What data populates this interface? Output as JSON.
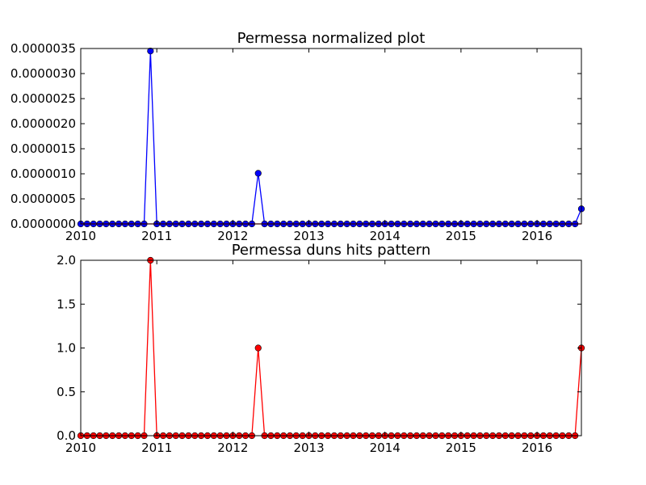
{
  "chart_data": [
    {
      "type": "line",
      "title": "Permessa normalized plot",
      "xlabel": "",
      "ylabel": "",
      "xlim": [
        "2010-01",
        "2016-08"
      ],
      "ylim": [
        0,
        3.5e-06
      ],
      "x_ticks": [
        "2010",
        "2011",
        "2012",
        "2013",
        "2014",
        "2015",
        "2016"
      ],
      "y_ticks": [
        "0.0000000",
        "0.0000005",
        "0.0000010",
        "0.0000015",
        "0.0000020",
        "0.0000025",
        "0.0000030",
        "0.0000035"
      ],
      "grid": false,
      "x_start": "2010-01",
      "x_frequency": "monthly",
      "series": [
        {
          "color": "#0000ff",
          "marker": "circle",
          "values": [
            0,
            0,
            0,
            0,
            0,
            0,
            0,
            0,
            0,
            0,
            0,
            3.45e-06,
            0,
            0,
            0,
            0,
            0,
            0,
            0,
            0,
            0,
            0,
            0,
            0,
            0,
            0,
            0,
            0,
            1.01e-06,
            0,
            0,
            0,
            0,
            0,
            0,
            0,
            0,
            0,
            0,
            0,
            0,
            0,
            0,
            0,
            0,
            0,
            0,
            0,
            0,
            0,
            0,
            0,
            0,
            0,
            0,
            0,
            0,
            0,
            0,
            0,
            0,
            0,
            0,
            0,
            0,
            0,
            0,
            0,
            0,
            0,
            0,
            0,
            0,
            0,
            0,
            0,
            0,
            0,
            0,
            3e-07
          ]
        },
        {
          "color": "#ff0000",
          "marker": "none",
          "values": [
            0,
            0,
            0,
            0,
            0,
            0,
            0,
            0,
            0,
            0,
            0,
            0,
            0,
            0,
            0,
            0,
            0,
            0,
            0,
            0,
            0,
            0,
            0,
            0,
            0,
            0,
            0,
            0,
            0,
            0,
            0,
            0,
            0,
            0,
            0,
            0,
            0,
            0,
            0,
            0,
            0,
            0,
            0,
            0,
            0,
            0,
            0,
            0,
            0,
            0,
            0,
            0,
            0,
            0,
            0,
            0,
            0,
            0,
            0,
            0,
            0,
            0,
            0,
            0,
            0,
            0,
            0,
            0,
            0,
            0,
            0,
            0,
            0,
            0,
            0,
            0,
            0,
            0,
            0,
            0
          ]
        }
      ]
    },
    {
      "type": "line",
      "title": "Permessa duns hits pattern",
      "xlabel": "",
      "ylabel": "",
      "xlim": [
        "2010-01",
        "2016-08"
      ],
      "ylim": [
        0,
        2.0
      ],
      "x_ticks": [
        "2010",
        "2011",
        "2012",
        "2013",
        "2014",
        "2015",
        "2016"
      ],
      "y_ticks": [
        "0.0",
        "0.5",
        "1.0",
        "1.5",
        "2.0"
      ],
      "grid": false,
      "x_start": "2010-01",
      "x_frequency": "monthly",
      "series": [
        {
          "color": "#ff0000",
          "marker": "circle",
          "values": [
            0,
            0,
            0,
            0,
            0,
            0,
            0,
            0,
            0,
            0,
            0,
            2,
            0,
            0,
            0,
            0,
            0,
            0,
            0,
            0,
            0,
            0,
            0,
            0,
            0,
            0,
            0,
            0,
            1,
            0,
            0,
            0,
            0,
            0,
            0,
            0,
            0,
            0,
            0,
            0,
            0,
            0,
            0,
            0,
            0,
            0,
            0,
            0,
            0,
            0,
            0,
            0,
            0,
            0,
            0,
            0,
            0,
            0,
            0,
            0,
            0,
            0,
            0,
            0,
            0,
            0,
            0,
            0,
            0,
            0,
            0,
            0,
            0,
            0,
            0,
            0,
            0,
            0,
            0,
            1
          ]
        }
      ]
    }
  ]
}
